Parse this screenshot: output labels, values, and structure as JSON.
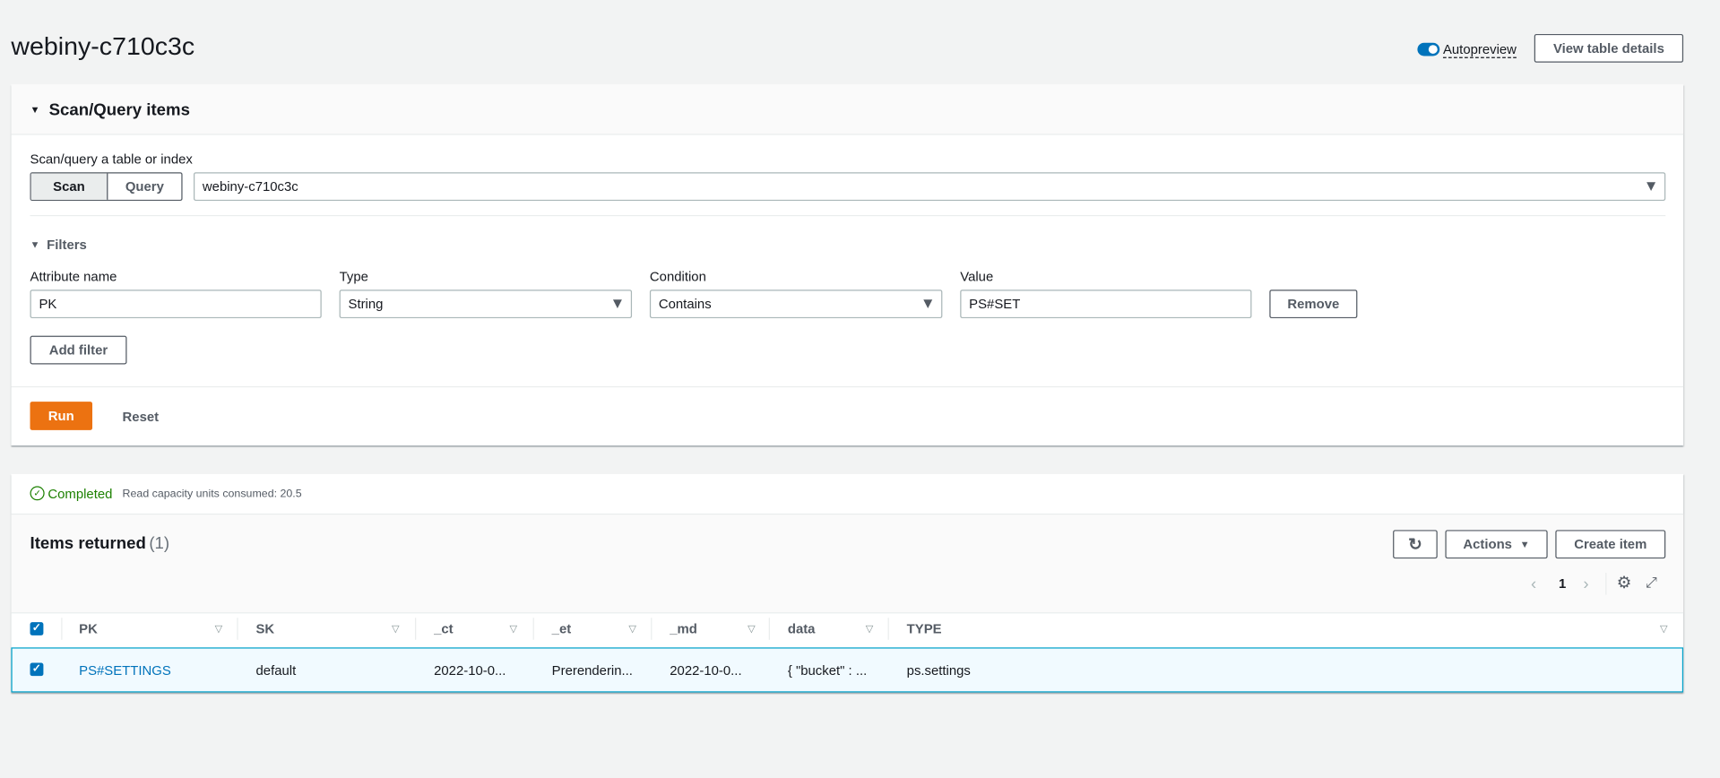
{
  "header": {
    "title": "webiny-c710c3c",
    "autopreview_label": "Autopreview",
    "autopreview_on": true,
    "view_details_label": "View table details"
  },
  "scan_panel": {
    "title": "Scan/Query items",
    "mode_label": "Scan/query a table or index",
    "modes": [
      "Scan",
      "Query"
    ],
    "selected_mode": "Scan",
    "table_select": "webiny-c710c3c",
    "filters_label": "Filters",
    "filter": {
      "attribute_label": "Attribute name",
      "attribute_value": "PK",
      "type_label": "Type",
      "type_value": "String",
      "condition_label": "Condition",
      "condition_value": "Contains",
      "value_label": "Value",
      "value_value": "PS#SET",
      "remove_label": "Remove"
    },
    "add_filter_label": "Add filter",
    "run_label": "Run",
    "reset_label": "Reset"
  },
  "results": {
    "status": "Completed",
    "consumed": "Read capacity units consumed: 20.5",
    "title": "Items returned",
    "count": "(1)",
    "actions_label": "Actions",
    "create_label": "Create item",
    "page": "1",
    "columns": [
      "PK",
      "SK",
      "_ct",
      "_et",
      "_md",
      "data",
      "TYPE"
    ],
    "rows": [
      [
        "PS#SETTINGS",
        "default",
        "2022-10-0...",
        "Prerenderin...",
        "2022-10-0...",
        "{ \"bucket\" : ...",
        "ps.settings"
      ]
    ]
  },
  "colors": {
    "accent": "#0073bb",
    "run": "#ec7211",
    "success": "#1d8102",
    "selected_row": "#f1faff",
    "row_border": "#00a1c9"
  }
}
